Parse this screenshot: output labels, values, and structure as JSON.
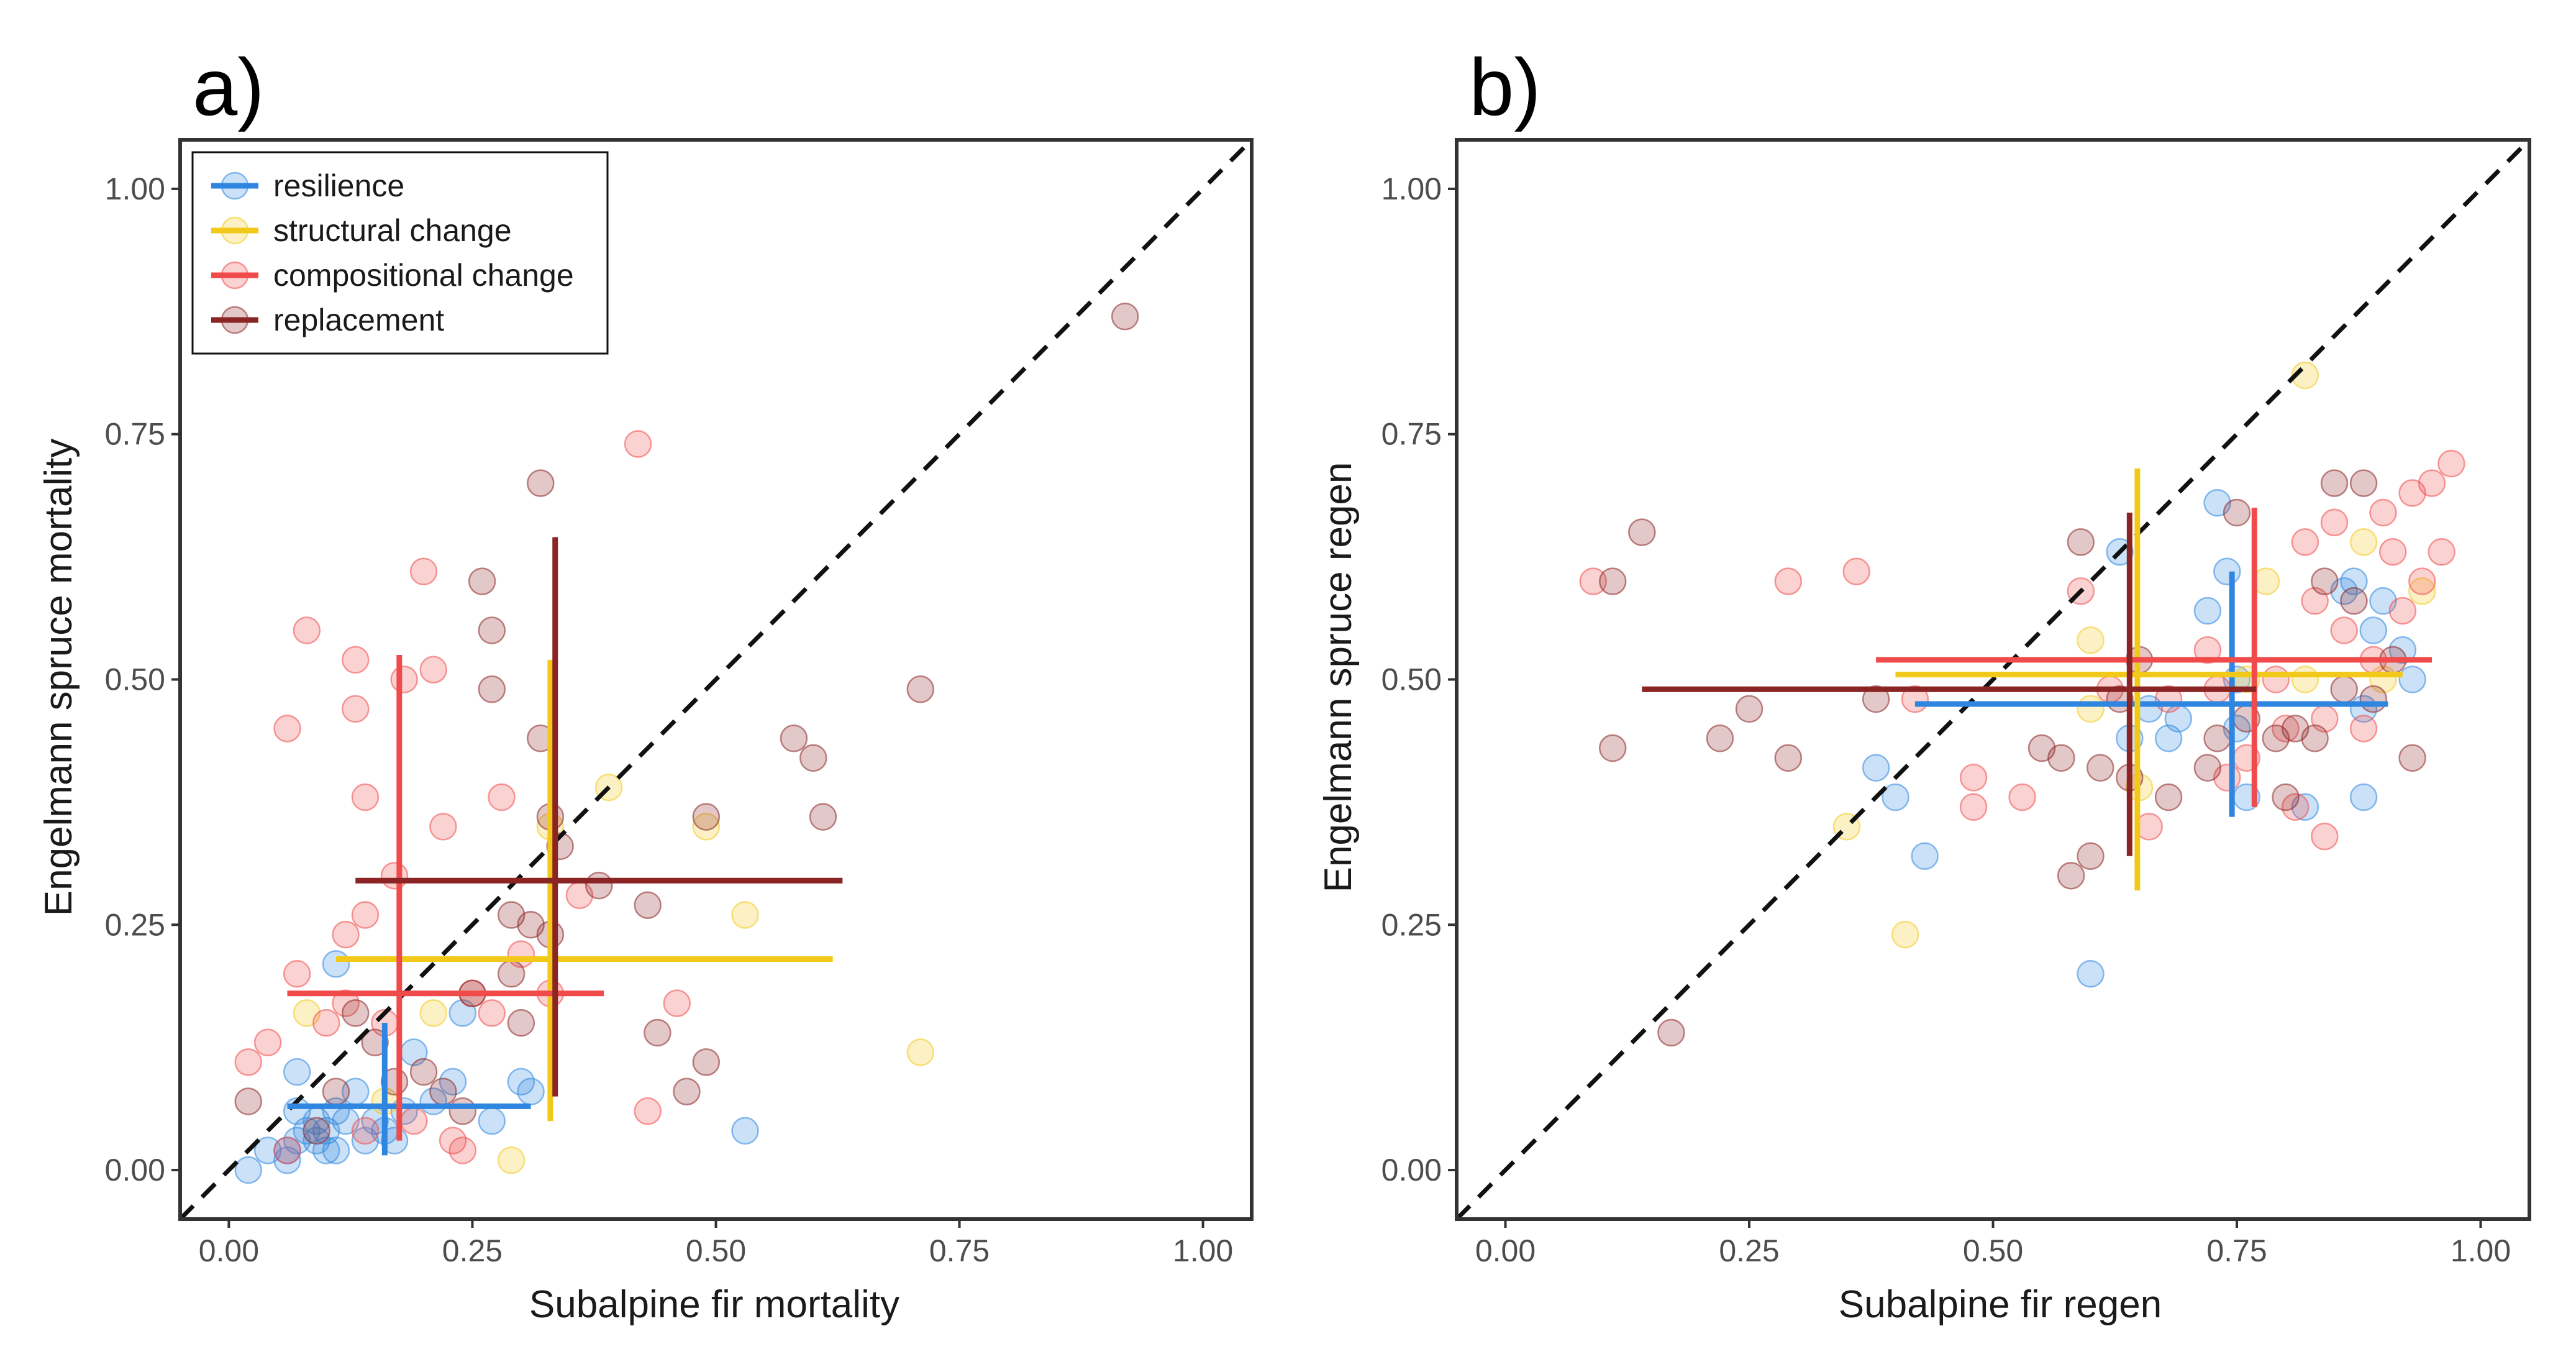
{
  "chart_data": [
    {
      "type": "scatter",
      "panel_label": "a)",
      "xlabel": "Subalpine fir mortality",
      "ylabel": "Engelmann spruce mortality",
      "xlim": [
        -0.05,
        1.05
      ],
      "ylim": [
        -0.05,
        1.05
      ],
      "xticks": [
        "0.00",
        "0.25",
        "0.50",
        "0.75",
        "1.00"
      ],
      "yticks": [
        "0.00",
        "0.25",
        "0.50",
        "0.75",
        "1.00"
      ],
      "reference_line": "y = x (dashed)",
      "grid": false,
      "legend": {
        "placement": "top-left",
        "entries": [
          "resilience",
          "structural change",
          "compositional change",
          "replacement"
        ]
      },
      "series": [
        {
          "name": "resilience",
          "color": "#2e86e0",
          "points": [
            [
              0.02,
              0.0
            ],
            [
              0.04,
              0.02
            ],
            [
              0.06,
              0.01
            ],
            [
              0.06,
              0.02
            ],
            [
              0.07,
              0.03
            ],
            [
              0.07,
              0.06
            ],
            [
              0.08,
              0.04
            ],
            [
              0.09,
              0.05
            ],
            [
              0.09,
              0.03
            ],
            [
              0.1,
              0.04
            ],
            [
              0.11,
              0.06
            ],
            [
              0.11,
              0.02
            ],
            [
              0.12,
              0.05
            ],
            [
              0.13,
              0.08
            ],
            [
              0.14,
              0.03
            ],
            [
              0.15,
              0.05
            ],
            [
              0.16,
              0.04
            ],
            [
              0.17,
              0.03
            ],
            [
              0.18,
              0.06
            ],
            [
              0.19,
              0.12
            ],
            [
              0.21,
              0.07
            ],
            [
              0.23,
              0.09
            ],
            [
              0.24,
              0.16
            ],
            [
              0.27,
              0.05
            ],
            [
              0.3,
              0.09
            ],
            [
              0.31,
              0.08
            ],
            [
              0.53,
              0.04
            ],
            [
              0.11,
              0.21
            ],
            [
              0.07,
              0.1
            ],
            [
              0.1,
              0.02
            ]
          ],
          "cross": {
            "x": 0.16,
            "y": 0.065,
            "x_range": [
              0.06,
              0.31
            ],
            "y_range": [
              0.015,
              0.15
            ]
          }
        },
        {
          "name": "structural change",
          "color": "#f2c919",
          "points": [
            [
              0.08,
              0.16
            ],
            [
              0.16,
              0.07
            ],
            [
              0.21,
              0.16
            ],
            [
              0.29,
              0.01
            ],
            [
              0.39,
              0.39
            ],
            [
              0.49,
              0.35
            ],
            [
              0.53,
              0.26
            ],
            [
              0.71,
              0.12
            ],
            [
              0.33,
              0.35
            ]
          ],
          "cross": {
            "x": 0.33,
            "y": 0.215,
            "x_range": [
              0.11,
              0.62
            ],
            "y_range": [
              0.05,
              0.52
            ]
          }
        },
        {
          "name": "compositional change",
          "color": "#f04a4a",
          "points": [
            [
              0.02,
              0.11
            ],
            [
              0.04,
              0.13
            ],
            [
              0.06,
              0.45
            ],
            [
              0.07,
              0.2
            ],
            [
              0.08,
              0.55
            ],
            [
              0.1,
              0.15
            ],
            [
              0.12,
              0.24
            ],
            [
              0.13,
              0.47
            ],
            [
              0.13,
              0.52
            ],
            [
              0.14,
              0.38
            ],
            [
              0.14,
              0.26
            ],
            [
              0.16,
              0.15
            ],
            [
              0.17,
              0.3
            ],
            [
              0.18,
              0.5
            ],
            [
              0.2,
              0.61
            ],
            [
              0.21,
              0.51
            ],
            [
              0.22,
              0.35
            ],
            [
              0.23,
              0.03
            ],
            [
              0.24,
              0.02
            ],
            [
              0.25,
              0.18
            ],
            [
              0.27,
              0.16
            ],
            [
              0.28,
              0.38
            ],
            [
              0.3,
              0.22
            ],
            [
              0.36,
              0.28
            ],
            [
              0.42,
              0.74
            ],
            [
              0.43,
              0.06
            ],
            [
              0.46,
              0.17
            ],
            [
              0.12,
              0.17
            ],
            [
              0.19,
              0.05
            ],
            [
              0.14,
              0.04
            ],
            [
              0.06,
              0.02
            ],
            [
              0.33,
              0.18
            ]
          ],
          "cross": {
            "x": 0.175,
            "y": 0.18,
            "x_range": [
              0.06,
              0.385
            ],
            "y_range": [
              0.03,
              0.525
            ]
          }
        },
        {
          "name": "replacement",
          "color": "#8b2424",
          "points": [
            [
              0.02,
              0.07
            ],
            [
              0.09,
              0.04
            ],
            [
              0.11,
              0.08
            ],
            [
              0.13,
              0.16
            ],
            [
              0.15,
              0.13
            ],
            [
              0.17,
              0.09
            ],
            [
              0.2,
              0.1
            ],
            [
              0.22,
              0.08
            ],
            [
              0.25,
              0.18
            ],
            [
              0.26,
              0.6
            ],
            [
              0.27,
              0.55
            ],
            [
              0.27,
              0.49
            ],
            [
              0.29,
              0.26
            ],
            [
              0.29,
              0.2
            ],
            [
              0.3,
              0.15
            ],
            [
              0.31,
              0.25
            ],
            [
              0.32,
              0.44
            ],
            [
              0.32,
              0.7
            ],
            [
              0.33,
              0.36
            ],
            [
              0.33,
              0.24
            ],
            [
              0.34,
              0.33
            ],
            [
              0.38,
              0.29
            ],
            [
              0.43,
              0.27
            ],
            [
              0.44,
              0.14
            ],
            [
              0.47,
              0.08
            ],
            [
              0.49,
              0.36
            ],
            [
              0.49,
              0.11
            ],
            [
              0.58,
              0.44
            ],
            [
              0.6,
              0.42
            ],
            [
              0.61,
              0.36
            ],
            [
              0.71,
              0.49
            ],
            [
              0.92,
              0.87
            ],
            [
              0.24,
              0.06
            ]
          ],
          "cross": {
            "x": 0.335,
            "y": 0.295,
            "x_range": [
              0.13,
              0.63
            ],
            "y_range": [
              0.075,
              0.645
            ]
          }
        }
      ]
    },
    {
      "type": "scatter",
      "panel_label": "b)",
      "xlabel": "Subalpine fir regen",
      "ylabel": "Engelmann spruce regen",
      "xlim": [
        -0.05,
        1.05
      ],
      "ylim": [
        -0.05,
        1.05
      ],
      "xticks": [
        "0.00",
        "0.25",
        "0.50",
        "0.75",
        "1.00"
      ],
      "yticks": [
        "0.00",
        "0.25",
        "0.50",
        "0.75",
        "1.00"
      ],
      "reference_line": "y = x (dashed)",
      "grid": false,
      "series": [
        {
          "name": "resilience",
          "color": "#2e86e0",
          "points": [
            [
              0.38,
              0.41
            ],
            [
              0.4,
              0.38
            ],
            [
              0.43,
              0.32
            ],
            [
              0.6,
              0.2
            ],
            [
              0.63,
              0.63
            ],
            [
              0.64,
              0.44
            ],
            [
              0.66,
              0.47
            ],
            [
              0.68,
              0.44
            ],
            [
              0.69,
              0.46
            ],
            [
              0.72,
              0.57
            ],
            [
              0.73,
              0.68
            ],
            [
              0.74,
              0.61
            ],
            [
              0.75,
              0.45
            ],
            [
              0.76,
              0.38
            ],
            [
              0.82,
              0.37
            ],
            [
              0.86,
              0.59
            ],
            [
              0.87,
              0.6
            ],
            [
              0.88,
              0.38
            ],
            [
              0.88,
              0.47
            ],
            [
              0.89,
              0.55
            ],
            [
              0.9,
              0.58
            ],
            [
              0.92,
              0.53
            ],
            [
              0.93,
              0.5
            ],
            [
              0.75,
              0.5
            ]
          ],
          "cross": {
            "x": 0.745,
            "y": 0.475,
            "x_range": [
              0.42,
              0.905
            ],
            "y_range": [
              0.36,
              0.61
            ]
          }
        },
        {
          "name": "structural change",
          "color": "#f2c919",
          "points": [
            [
              0.35,
              0.35
            ],
            [
              0.41,
              0.24
            ],
            [
              0.6,
              0.54
            ],
            [
              0.6,
              0.47
            ],
            [
              0.65,
              0.39
            ],
            [
              0.76,
              0.5
            ],
            [
              0.78,
              0.6
            ],
            [
              0.82,
              0.81
            ],
            [
              0.88,
              0.64
            ],
            [
              0.9,
              0.5
            ],
            [
              0.94,
              0.59
            ],
            [
              0.82,
              0.5
            ]
          ],
          "cross": {
            "x": 0.648,
            "y": 0.505,
            "x_range": [
              0.4,
              0.92
            ],
            "y_range": [
              0.285,
              0.715
            ]
          }
        },
        {
          "name": "compositional change",
          "color": "#f04a4a",
          "points": [
            [
              0.09,
              0.6
            ],
            [
              0.29,
              0.6
            ],
            [
              0.36,
              0.61
            ],
            [
              0.42,
              0.48
            ],
            [
              0.48,
              0.4
            ],
            [
              0.48,
              0.37
            ],
            [
              0.53,
              0.38
            ],
            [
              0.59,
              0.59
            ],
            [
              0.62,
              0.49
            ],
            [
              0.66,
              0.35
            ],
            [
              0.68,
              0.48
            ],
            [
              0.72,
              0.53
            ],
            [
              0.73,
              0.49
            ],
            [
              0.74,
              0.4
            ],
            [
              0.76,
              0.42
            ],
            [
              0.8,
              0.45
            ],
            [
              0.81,
              0.37
            ],
            [
              0.82,
              0.64
            ],
            [
              0.83,
              0.58
            ],
            [
              0.84,
              0.46
            ],
            [
              0.85,
              0.66
            ],
            [
              0.86,
              0.55
            ],
            [
              0.88,
              0.45
            ],
            [
              0.89,
              0.52
            ],
            [
              0.9,
              0.67
            ],
            [
              0.91,
              0.63
            ],
            [
              0.92,
              0.57
            ],
            [
              0.93,
              0.69
            ],
            [
              0.94,
              0.6
            ],
            [
              0.95,
              0.7
            ],
            [
              0.96,
              0.63
            ],
            [
              0.97,
              0.72
            ],
            [
              0.84,
              0.34
            ],
            [
              0.79,
              0.5
            ]
          ],
          "cross": {
            "x": 0.768,
            "y": 0.52,
            "x_range": [
              0.38,
              0.95
            ],
            "y_range": [
              0.37,
              0.675
            ]
          }
        },
        {
          "name": "replacement",
          "color": "#8b2424",
          "points": [
            [
              0.11,
              0.6
            ],
            [
              0.11,
              0.43
            ],
            [
              0.14,
              0.65
            ],
            [
              0.17,
              0.14
            ],
            [
              0.22,
              0.44
            ],
            [
              0.25,
              0.47
            ],
            [
              0.29,
              0.42
            ],
            [
              0.38,
              0.48
            ],
            [
              0.55,
              0.43
            ],
            [
              0.57,
              0.42
            ],
            [
              0.58,
              0.3
            ],
            [
              0.59,
              0.64
            ],
            [
              0.6,
              0.32
            ],
            [
              0.61,
              0.41
            ],
            [
              0.63,
              0.48
            ],
            [
              0.64,
              0.4
            ],
            [
              0.68,
              0.38
            ],
            [
              0.72,
              0.41
            ],
            [
              0.73,
              0.44
            ],
            [
              0.75,
              0.67
            ],
            [
              0.76,
              0.46
            ],
            [
              0.79,
              0.44
            ],
            [
              0.8,
              0.38
            ],
            [
              0.81,
              0.45
            ],
            [
              0.83,
              0.44
            ],
            [
              0.84,
              0.6
            ],
            [
              0.85,
              0.7
            ],
            [
              0.86,
              0.49
            ],
            [
              0.87,
              0.58
            ],
            [
              0.88,
              0.7
            ],
            [
              0.89,
              0.48
            ],
            [
              0.91,
              0.52
            ],
            [
              0.93,
              0.42
            ],
            [
              0.65,
              0.52
            ]
          ],
          "cross": {
            "x": 0.64,
            "y": 0.49,
            "x_range": [
              0.14,
              0.77
            ],
            "y_range": [
              0.32,
              0.67
            ]
          }
        }
      ]
    }
  ]
}
